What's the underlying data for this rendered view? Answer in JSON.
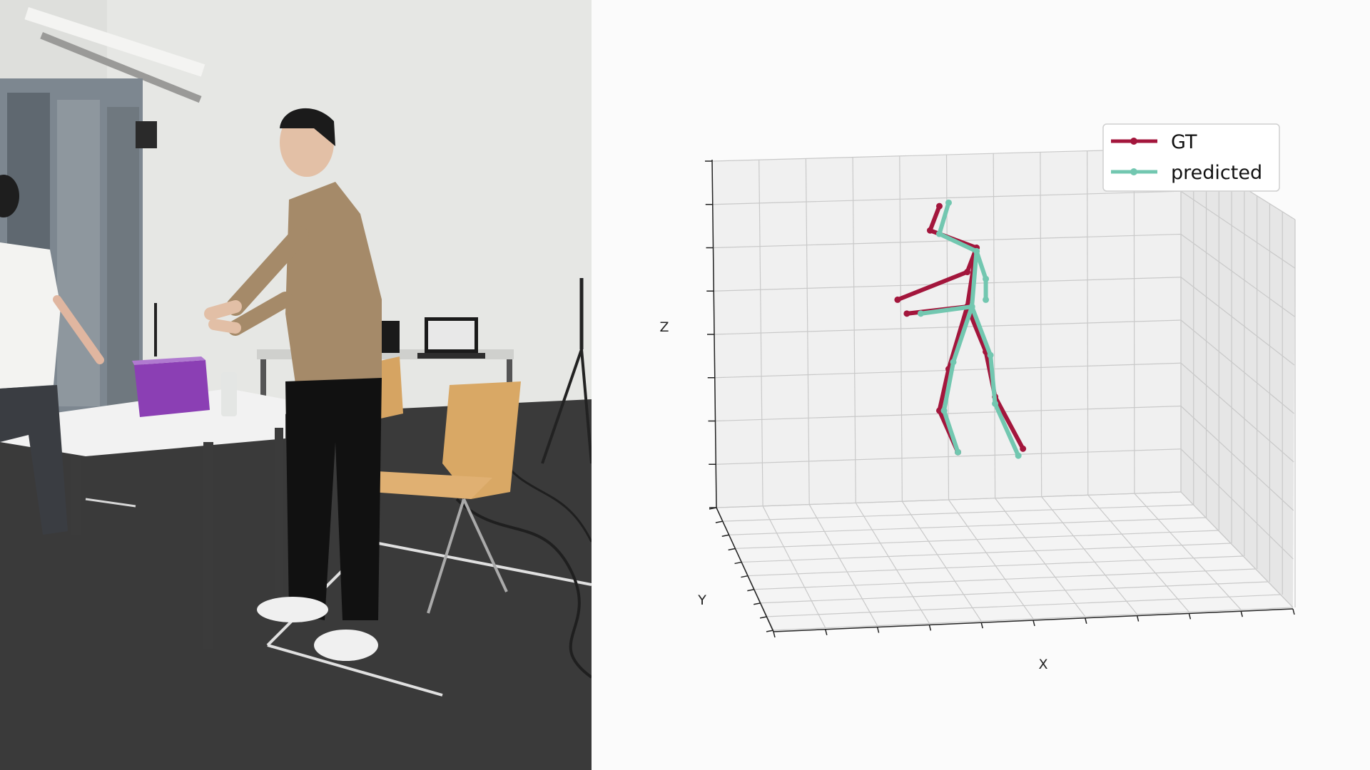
{
  "photo": {
    "description_icon": "lab-scene-photo"
  },
  "chart_data": {
    "type": "3d-line",
    "xlabel": "X",
    "ylabel": "Y",
    "zlabel": "Z",
    "grid": true,
    "legend_placement": "top-right",
    "colors": {
      "gt": "#a3163c",
      "predicted": "#72c7b0"
    },
    "series": [
      {
        "name": "GT",
        "key": "gt",
        "segments": [
          [
            [
              0.48,
              0.13
            ],
            [
              0.46,
              0.2
            ],
            [
              0.56,
              0.25
            ],
            [
              0.54,
              0.32
            ],
            [
              0.39,
              0.4
            ]
          ],
          [
            [
              0.56,
              0.25
            ],
            [
              0.54,
              0.42
            ],
            [
              0.41,
              0.44
            ]
          ],
          [
            [
              0.54,
              0.42
            ],
            [
              0.5,
              0.6
            ],
            [
              0.48,
              0.72
            ],
            [
              0.52,
              0.84
            ]
          ],
          [
            [
              0.54,
              0.42
            ],
            [
              0.58,
              0.55
            ],
            [
              0.6,
              0.68
            ],
            [
              0.66,
              0.83
            ]
          ]
        ]
      },
      {
        "name": "predicted",
        "key": "predicted",
        "segments": [
          [
            [
              0.5,
              0.12
            ],
            [
              0.48,
              0.21
            ],
            [
              0.56,
              0.26
            ],
            [
              0.58,
              0.34
            ],
            [
              0.58,
              0.4
            ]
          ],
          [
            [
              0.56,
              0.26
            ],
            [
              0.55,
              0.42
            ],
            [
              0.44,
              0.44
            ]
          ],
          [
            [
              0.55,
              0.42
            ],
            [
              0.51,
              0.58
            ],
            [
              0.49,
              0.72
            ],
            [
              0.52,
              0.84
            ]
          ],
          [
            [
              0.55,
              0.42
            ],
            [
              0.59,
              0.56
            ],
            [
              0.6,
              0.7
            ],
            [
              0.65,
              0.85
            ]
          ]
        ]
      }
    ]
  }
}
